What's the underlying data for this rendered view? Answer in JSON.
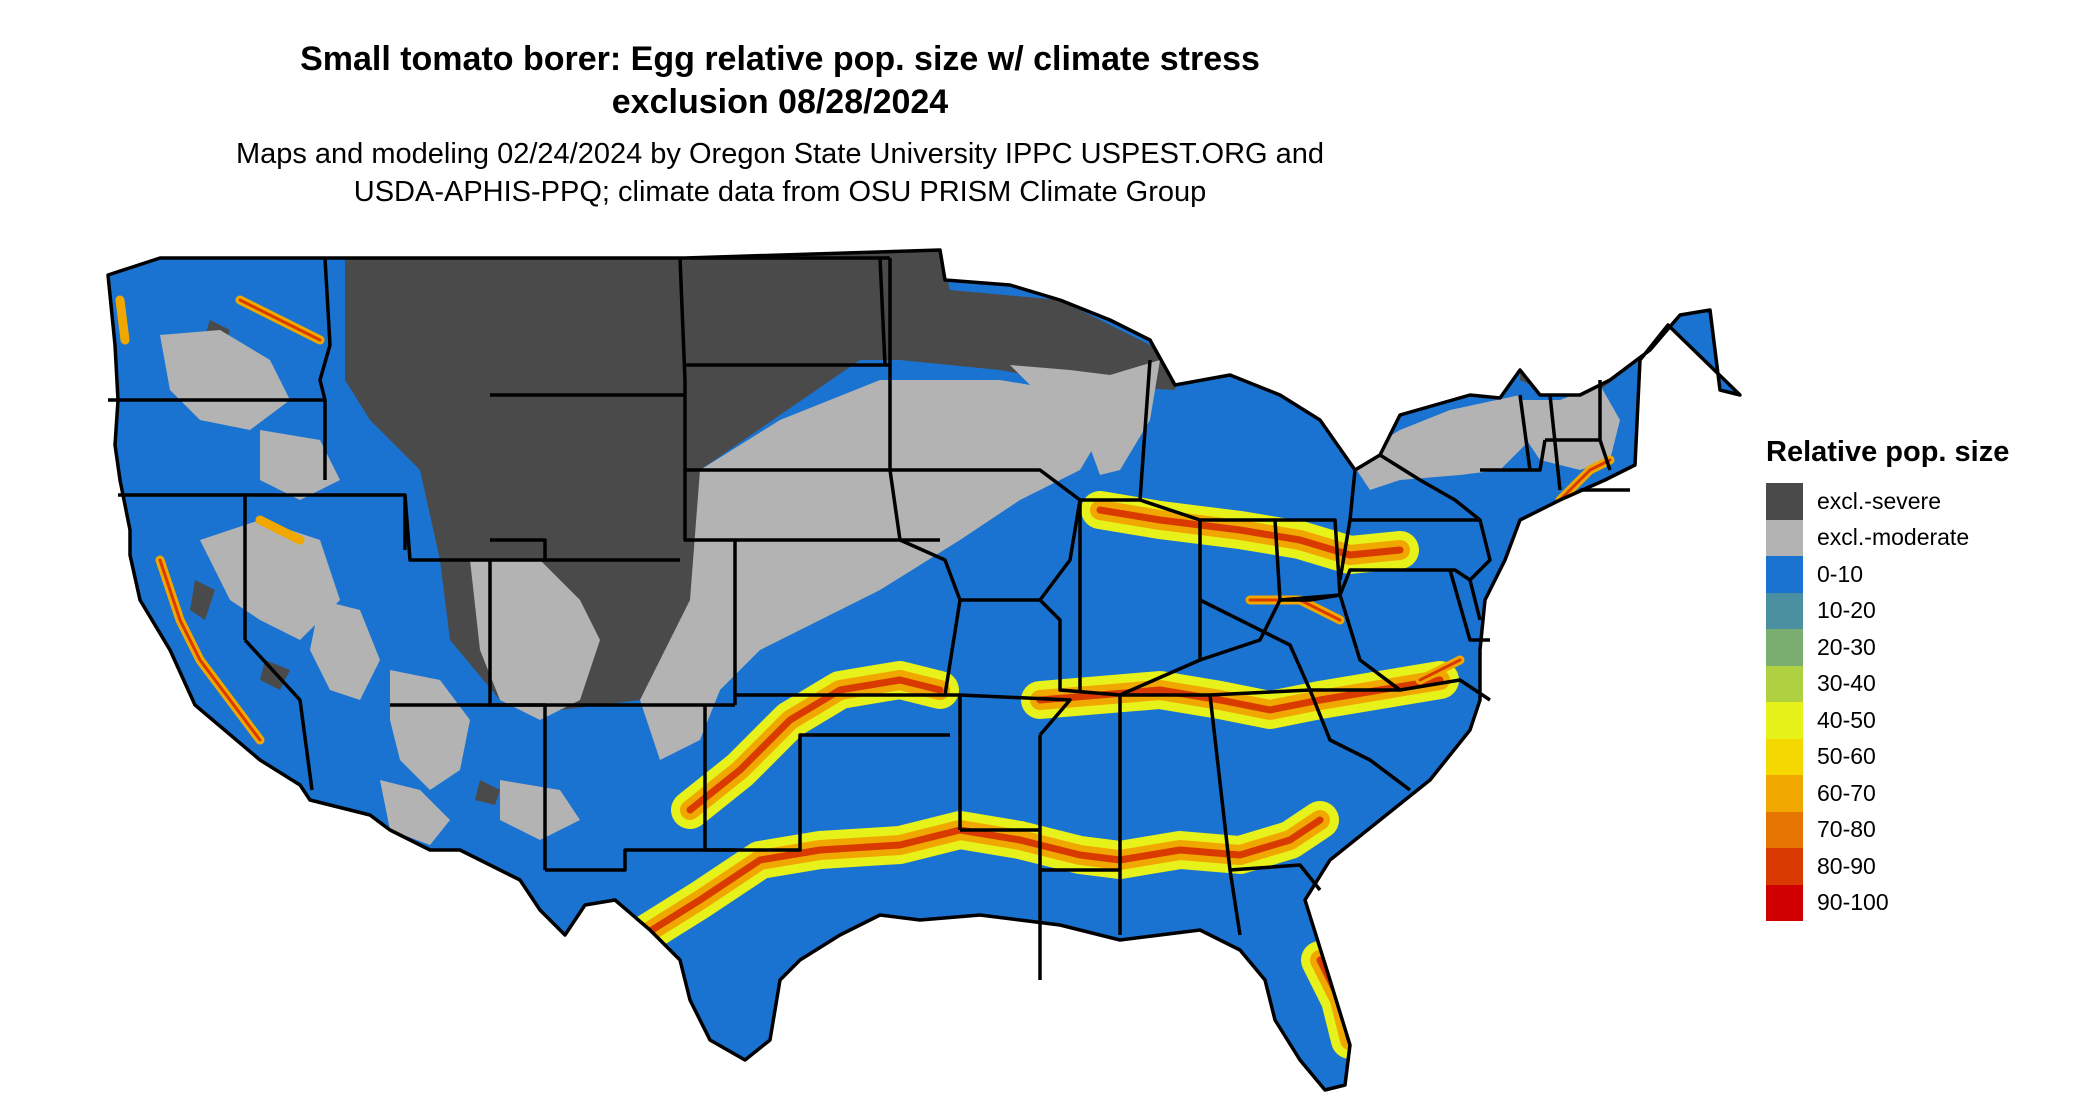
{
  "title": {
    "line1": "Small tomato borer: Egg relative pop. size w/ climate stress",
    "line2": "exclusion 08/28/2024"
  },
  "subtitle": {
    "line1": "Maps and modeling 02/24/2024 by Oregon State University IPPC USPEST.ORG and",
    "line2": "USDA-APHIS-PPQ; climate data from OSU PRISM Climate Group"
  },
  "legend": {
    "title": "Relative pop. size",
    "items": [
      {
        "label": "excl.-severe",
        "color": "#4a4a4a"
      },
      {
        "label": "excl.-moderate",
        "color": "#b3b3b3"
      },
      {
        "label": "0-10",
        "color": "#1a73d0"
      },
      {
        "label": "10-20",
        "color": "#4a90a0"
      },
      {
        "label": "20-30",
        "color": "#7aae70"
      },
      {
        "label": "30-40",
        "color": "#afd040"
      },
      {
        "label": "40-50",
        "color": "#e6f21a"
      },
      {
        "label": "50-60",
        "color": "#f5d800"
      },
      {
        "label": "60-70",
        "color": "#f0a800"
      },
      {
        "label": "70-80",
        "color": "#e57400"
      },
      {
        "label": "80-90",
        "color": "#d93a00"
      },
      {
        "label": "90-100",
        "color": "#d00000"
      }
    ]
  },
  "map": {
    "region": "Contiguous United States",
    "colors": {
      "severe": "#4a4a4a",
      "moderate": "#b3b3b3",
      "low": "#1a73d0",
      "band_outer": "#e6f21a",
      "band_mid": "#f0a800",
      "band_core": "#d93a00",
      "state_border": "#000000"
    }
  }
}
